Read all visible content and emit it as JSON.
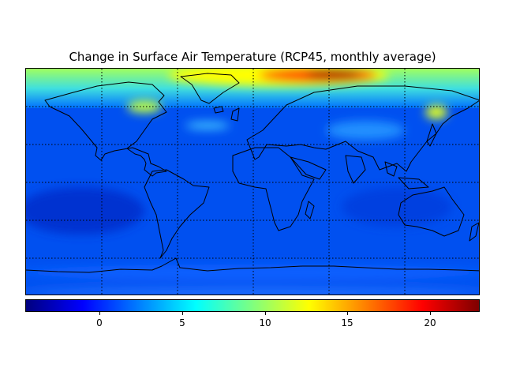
{
  "title": "Change in Surface Air Temperature (RCP45, monthly average)",
  "map": {
    "projection": "equirectangular",
    "extent": {
      "lon": [
        -180,
        180
      ],
      "lat": [
        -90,
        90
      ]
    },
    "meridians_deg": [
      -120,
      -60,
      0,
      60,
      120
    ],
    "parallels_deg": [
      -60,
      -30,
      0,
      30,
      60
    ],
    "gridline_style": "dotted",
    "colormap": "jet"
  },
  "colorbar": {
    "min": -4.5,
    "max": 23,
    "ticks": [
      0,
      5,
      10,
      15,
      20
    ],
    "tick_labels": [
      "0",
      "5",
      "10",
      "15",
      "20"
    ],
    "colors": [
      "#00007f",
      "#0000ff",
      "#007fff",
      "#00ffff",
      "#7fff7f",
      "#ffff00",
      "#ff7f00",
      "#ff0000",
      "#7f0000"
    ]
  },
  "colors": {
    "background_field": "#0050f0",
    "coastline": "#000000"
  }
}
